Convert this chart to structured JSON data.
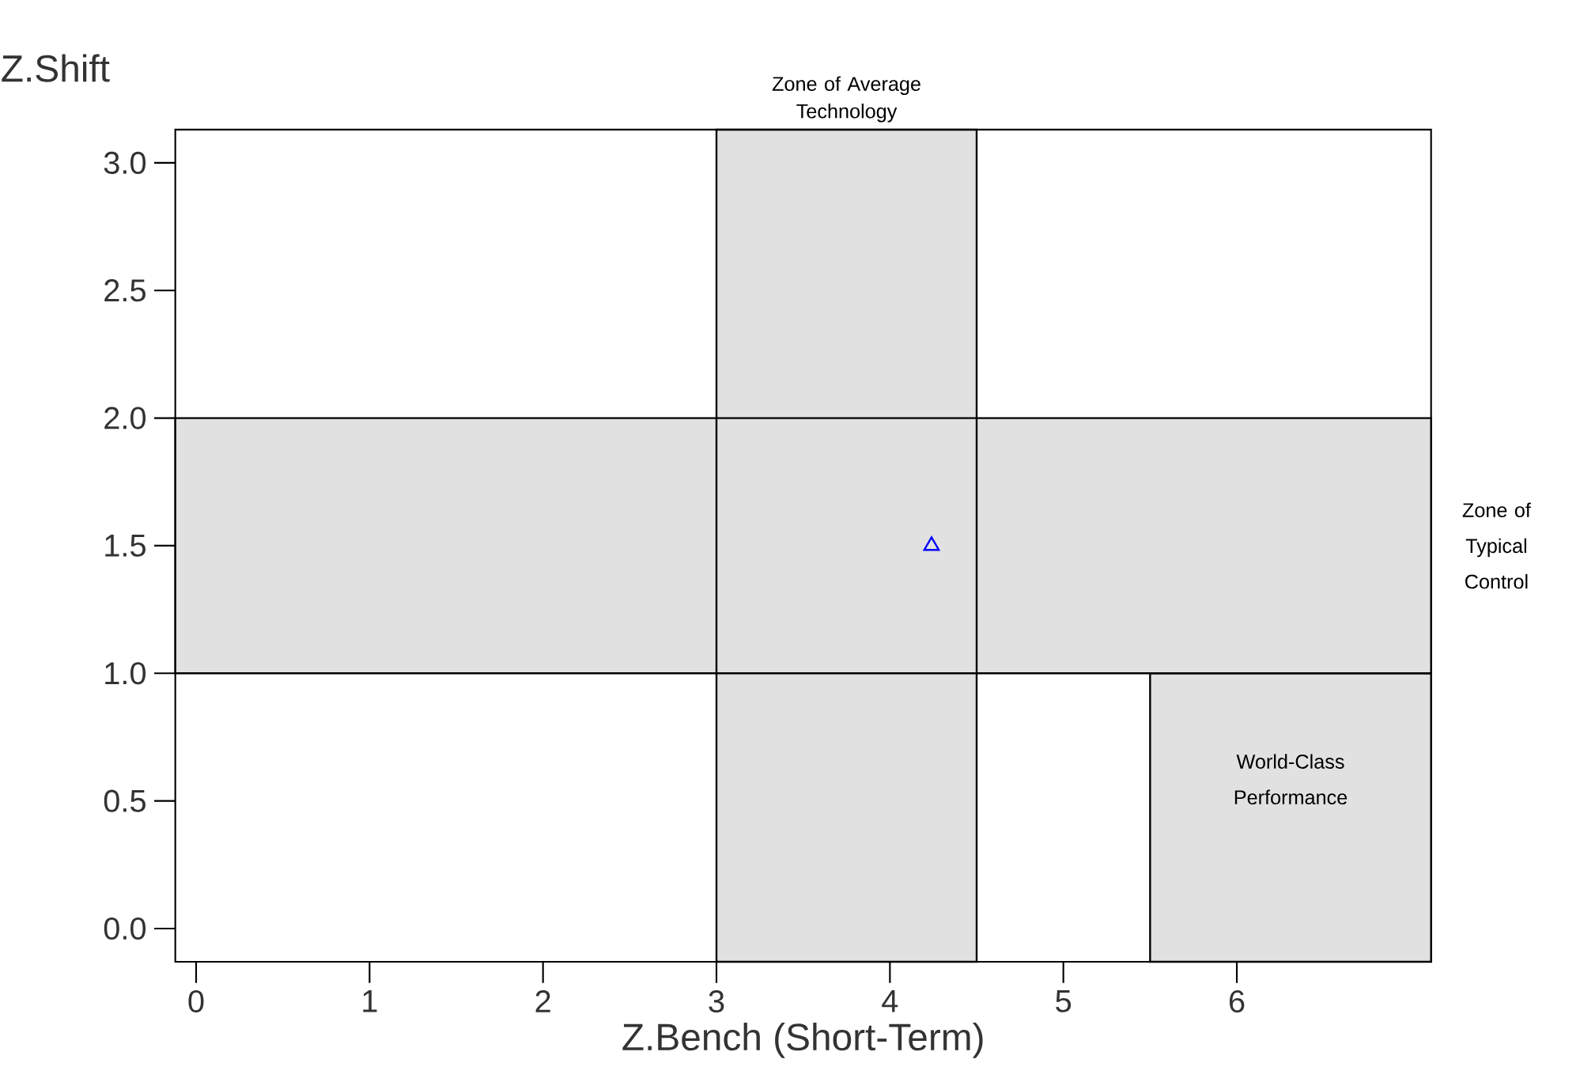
{
  "chart_data": {
    "type": "scatter",
    "xlabel": "Z.Bench (Short-Term)",
    "ylabel": "Z.Shift",
    "x": [
      4.24
    ],
    "series": [
      {
        "color": "#0000ff",
        "values": [
          1.5
        ]
      }
    ],
    "marker": "triangle",
    "xlim": [
      -0.12,
      7.12
    ],
    "ylim": [
      -0.13,
      3.13
    ],
    "xticks": [
      0,
      1,
      2,
      3,
      4,
      5,
      6
    ],
    "yticks": [
      {
        "value": 0,
        "label": "0.0"
      },
      {
        "value": 0.5,
        "label": "0.5"
      },
      {
        "value": 1,
        "label": "1.0"
      },
      {
        "value": 1.5,
        "label": "1.5"
      },
      {
        "value": 2,
        "label": "2.0"
      },
      {
        "value": 2.5,
        "label": "2.5"
      },
      {
        "value": 3,
        "label": "3.0"
      }
    ],
    "bands": [
      {
        "axis": "x",
        "from": 3,
        "to": 4.5,
        "label": "Zone of Average Technology",
        "color": "#e1e1e1"
      },
      {
        "axis": "y",
        "from": 1,
        "to": 2,
        "label": "Zone of Typical Control",
        "color": "#e1e1e1"
      },
      {
        "axis": "x",
        "from": 5.5,
        "to": 7.12,
        "label": "World-Class Performance",
        "color": "#e1e1e1"
      }
    ]
  }
}
